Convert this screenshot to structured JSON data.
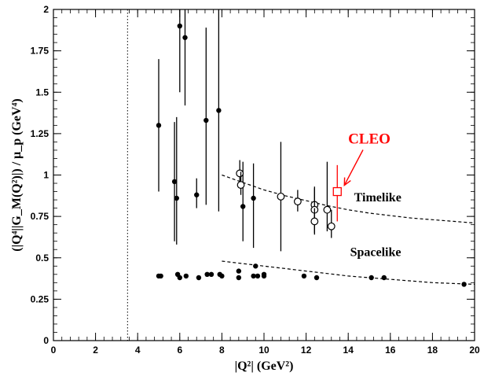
{
  "chart_data": {
    "type": "scatter",
    "xlabel": "|Q²|  (GeV²)",
    "ylabel": "(|Q⁴||G_M(Q²)|) / μ_p   (GeV⁴)",
    "xlim": [
      0,
      20
    ],
    "ylim": [
      0,
      2
    ],
    "x_ticks": [
      "0",
      "2",
      "4",
      "6",
      "8",
      "10",
      "12",
      "14",
      "16",
      "18",
      "20"
    ],
    "y_ticks": [
      "0",
      "0.25",
      "0.5",
      "0.75",
      "1",
      "1.25",
      "1.5",
      "1.75",
      "2"
    ],
    "grid": false,
    "threshold_line_x": 3.52,
    "annotations": [
      {
        "text": "CLEO",
        "x": 15.0,
        "y": 1.19,
        "color": "#ff0000"
      },
      {
        "text": "Timelike",
        "x": 15.4,
        "y": 0.84,
        "color": "#000000"
      },
      {
        "text": "Spacelike",
        "x": 15.3,
        "y": 0.51,
        "color": "#000000"
      }
    ],
    "series": [
      {
        "marker": "filled-circle",
        "region": "timelike",
        "points": [
          {
            "x": 5.0,
            "y": 1.3,
            "lo": 0.9,
            "hi": 1.7
          },
          {
            "x": 5.75,
            "y": 0.96,
            "lo": 0.6,
            "hi": 1.32
          },
          {
            "x": 5.85,
            "y": 0.86,
            "lo": 0.58,
            "hi": 1.35
          },
          {
            "x": 6.0,
            "y": 1.9,
            "lo": 1.5,
            "hi": 2.0
          },
          {
            "x": 6.25,
            "y": 1.83,
            "lo": 1.42,
            "hi": 2.0
          },
          {
            "x": 6.8,
            "y": 0.88,
            "lo": 0.8,
            "hi": 0.98
          },
          {
            "x": 7.25,
            "y": 1.33,
            "lo": 0.82,
            "hi": 1.89
          },
          {
            "x": 7.85,
            "y": 1.39,
            "lo": 0.78,
            "hi": 2.0
          },
          {
            "x": 9.0,
            "y": 0.81,
            "lo": 0.6,
            "hi": 1.08
          },
          {
            "x": 9.5,
            "y": 0.86,
            "lo": 0.56,
            "hi": 1.07
          }
        ]
      },
      {
        "marker": "open-circle",
        "region": "timelike",
        "points": [
          {
            "x": 8.85,
            "y": 1.01,
            "lo": 0.93,
            "hi": 1.09
          },
          {
            "x": 8.9,
            "y": 0.94,
            "lo": 0.88,
            "hi": 1.02
          },
          {
            "x": 10.8,
            "y": 0.87,
            "lo": 0.54,
            "hi": 1.2
          },
          {
            "x": 11.6,
            "y": 0.84,
            "lo": 0.78,
            "hi": 0.91
          },
          {
            "x": 12.4,
            "y": 0.82,
            "lo": 0.73,
            "hi": 0.92
          },
          {
            "x": 12.4,
            "y": 0.79,
            "lo": 0.65,
            "hi": 0.93
          },
          {
            "x": 12.4,
            "y": 0.72,
            "lo": 0.64,
            "hi": 0.8
          },
          {
            "x": 13.0,
            "y": 0.79,
            "lo": 0.66,
            "hi": 1.08
          },
          {
            "x": 13.2,
            "y": 0.69,
            "lo": 0.62,
            "hi": 0.79
          }
        ]
      },
      {
        "marker": "open-square",
        "region": "timelike",
        "color": "#ff0000",
        "points": [
          {
            "x": 13.48,
            "y": 0.9,
            "lo": 0.72,
            "hi": 1.06
          }
        ]
      },
      {
        "marker": "filled-circle",
        "region": "spacelike",
        "points": [
          {
            "x": 5.0,
            "y": 0.39
          },
          {
            "x": 5.1,
            "y": 0.39
          },
          {
            "x": 5.9,
            "y": 0.4
          },
          {
            "x": 6.0,
            "y": 0.38
          },
          {
            "x": 6.3,
            "y": 0.39
          },
          {
            "x": 6.9,
            "y": 0.38
          },
          {
            "x": 7.3,
            "y": 0.4
          },
          {
            "x": 7.5,
            "y": 0.4
          },
          {
            "x": 7.9,
            "y": 0.4
          },
          {
            "x": 8.0,
            "y": 0.39
          },
          {
            "x": 8.8,
            "y": 0.42
          },
          {
            "x": 8.8,
            "y": 0.38
          },
          {
            "x": 9.5,
            "y": 0.39
          },
          {
            "x": 9.6,
            "y": 0.45
          },
          {
            "x": 9.7,
            "y": 0.39
          },
          {
            "x": 10.0,
            "y": 0.4
          },
          {
            "x": 10.0,
            "y": 0.39
          },
          {
            "x": 11.9,
            "y": 0.39
          },
          {
            "x": 12.5,
            "y": 0.38
          },
          {
            "x": 15.1,
            "y": 0.38
          },
          {
            "x": 15.7,
            "y": 0.38
          },
          {
            "x": 19.5,
            "y": 0.34
          }
        ]
      }
    ],
    "fit_curves": [
      {
        "style": "dashed",
        "region": "timelike",
        "points": [
          [
            8.0,
            1.0
          ],
          [
            9.0,
            0.955
          ],
          [
            10.0,
            0.91
          ],
          [
            11.0,
            0.875
          ],
          [
            12.0,
            0.845
          ],
          [
            13.0,
            0.815
          ],
          [
            14.0,
            0.79
          ],
          [
            15.0,
            0.77
          ],
          [
            16.0,
            0.755
          ],
          [
            17.0,
            0.74
          ],
          [
            18.0,
            0.73
          ],
          [
            19.0,
            0.72
          ],
          [
            20.0,
            0.71
          ]
        ]
      },
      {
        "style": "dashed",
        "region": "spacelike",
        "points": [
          [
            8.0,
            0.48
          ],
          [
            9.0,
            0.465
          ],
          [
            10.0,
            0.45
          ],
          [
            11.0,
            0.435
          ],
          [
            12.0,
            0.42
          ],
          [
            13.0,
            0.405
          ],
          [
            14.0,
            0.39
          ],
          [
            15.0,
            0.38
          ],
          [
            16.0,
            0.37
          ],
          [
            17.0,
            0.36
          ],
          [
            18.0,
            0.35
          ],
          [
            19.0,
            0.345
          ],
          [
            20.0,
            0.34
          ]
        ]
      }
    ]
  }
}
